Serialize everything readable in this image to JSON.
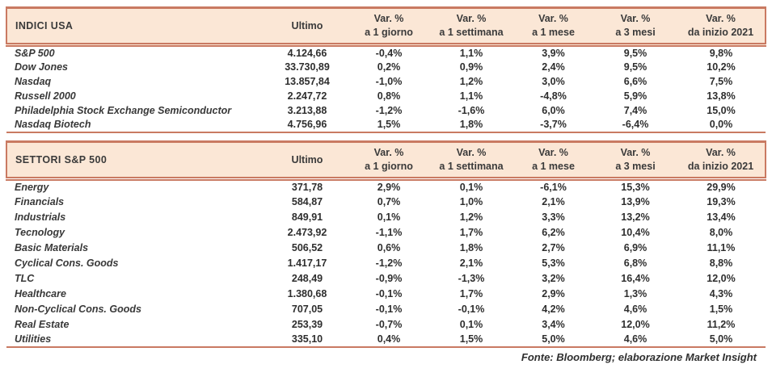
{
  "colors": {
    "header_bg": "#fbe7d6",
    "border_salmon": "#c97a62",
    "text": "#333333"
  },
  "columns": {
    "ultimo": "Ultimo",
    "var_label": "Var. %",
    "sub": [
      "a 1 giorno",
      "a 1 settimana",
      "a 1 mese",
      "a 3 mesi",
      "da inizio 2021"
    ]
  },
  "tables": [
    {
      "title": "INDICI USA",
      "rows": [
        {
          "name": "S&P 500",
          "ultimo": "4.124,66",
          "vars": [
            "-0,4%",
            "1,1%",
            "3,9%",
            "9,5%",
            "9,8%"
          ]
        },
        {
          "name": "Dow Jones",
          "ultimo": "33.730,89",
          "vars": [
            "0,2%",
            "0,9%",
            "2,4%",
            "9,5%",
            "10,2%"
          ]
        },
        {
          "name": "Nasdaq",
          "ultimo": "13.857,84",
          "vars": [
            "-1,0%",
            "1,2%",
            "3,0%",
            "6,6%",
            "7,5%"
          ]
        },
        {
          "name": "Russell 2000",
          "ultimo": "2.247,72",
          "vars": [
            "0,8%",
            "1,1%",
            "-4,8%",
            "5,9%",
            "13,8%"
          ]
        },
        {
          "name": "Philadelphia Stock Exchange Semiconductor",
          "ultimo": "3.213,88",
          "vars": [
            "-1,2%",
            "-1,6%",
            "6,0%",
            "7,4%",
            "15,0%"
          ]
        },
        {
          "name": "Nasdaq Biotech",
          "ultimo": "4.756,96",
          "vars": [
            "1,5%",
            "1,8%",
            "-3,7%",
            "-6,4%",
            "0,0%"
          ]
        }
      ]
    },
    {
      "title": "SETTORI S&P 500",
      "rows": [
        {
          "name": "Energy",
          "ultimo": "371,78",
          "vars": [
            "2,9%",
            "0,1%",
            "-6,1%",
            "15,3%",
            "29,9%"
          ]
        },
        {
          "name": "Financials",
          "ultimo": "584,87",
          "vars": [
            "0,7%",
            "1,0%",
            "2,1%",
            "13,9%",
            "19,3%"
          ]
        },
        {
          "name": "Industrials",
          "ultimo": "849,91",
          "vars": [
            "0,1%",
            "1,2%",
            "3,3%",
            "13,2%",
            "13,4%"
          ]
        },
        {
          "name": "Tecnology",
          "ultimo": "2.473,92",
          "vars": [
            "-1,1%",
            "1,7%",
            "6,2%",
            "10,4%",
            "8,0%"
          ]
        },
        {
          "name": "Basic Materials",
          "ultimo": "506,52",
          "vars": [
            "0,6%",
            "1,8%",
            "2,7%",
            "6,9%",
            "11,1%"
          ]
        },
        {
          "name": "Cyclical Cons. Goods",
          "ultimo": "1.417,17",
          "vars": [
            "-1,2%",
            "2,1%",
            "5,3%",
            "6,8%",
            "8,8%"
          ]
        },
        {
          "name": "TLC",
          "ultimo": "248,49",
          "vars": [
            "-0,9%",
            "-1,3%",
            "3,2%",
            "16,4%",
            "12,0%"
          ]
        },
        {
          "name": "Healthcare",
          "ultimo": "1.380,68",
          "vars": [
            "-0,1%",
            "1,7%",
            "2,9%",
            "1,3%",
            "4,3%"
          ]
        },
        {
          "name": "Non-Cyclical Cons. Goods",
          "ultimo": "707,05",
          "vars": [
            "-0,1%",
            "-0,1%",
            "4,2%",
            "4,6%",
            "1,5%"
          ]
        },
        {
          "name": "Real Estate",
          "ultimo": "253,39",
          "vars": [
            "-0,7%",
            "0,1%",
            "3,4%",
            "12,0%",
            "11,2%"
          ]
        },
        {
          "name": "Utilities",
          "ultimo": "335,10",
          "vars": [
            "0,4%",
            "1,5%",
            "5,0%",
            "4,6%",
            "5,0%"
          ]
        }
      ]
    }
  ],
  "footer": {
    "source_note": "Fonte: Bloomberg; elaborazione Market Insight"
  }
}
